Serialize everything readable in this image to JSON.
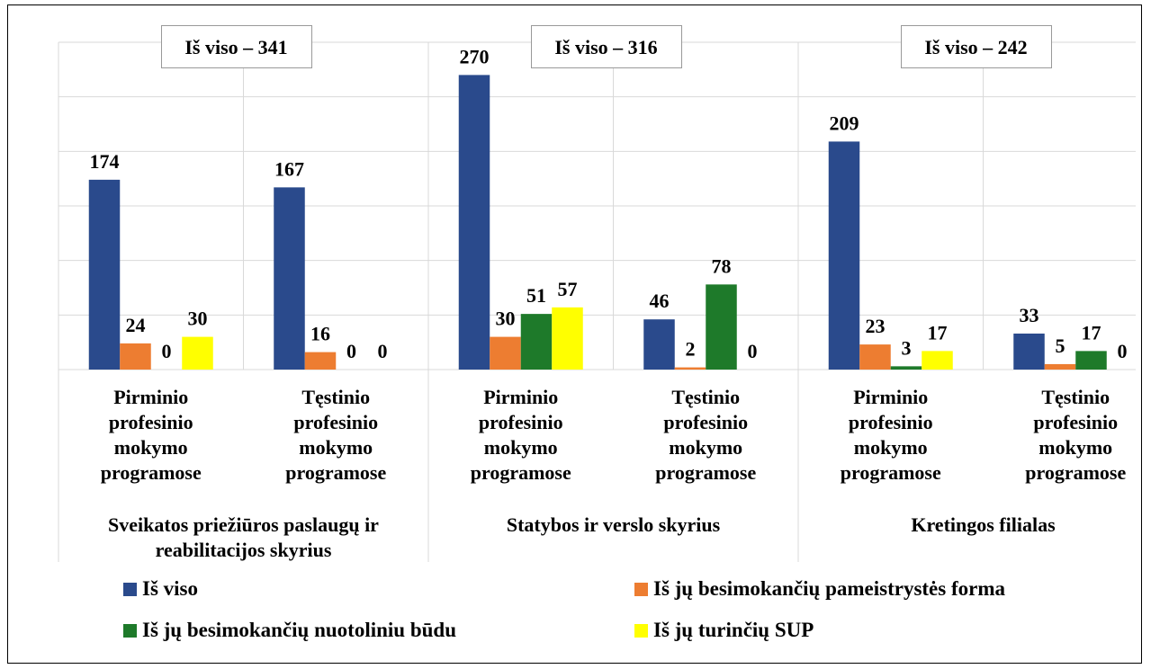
{
  "chart_data": {
    "type": "bar",
    "categories": [
      "Pirminio profesinio mokymo programose",
      "Tęstinio profesinio mokymo programose",
      "Pirminio profesinio mokymo programose",
      "Tęstinio profesinio mokymo programose",
      "Pirminio profesinio mokymo programose",
      "Tęstinio profesinio mokymo programose"
    ],
    "groups": [
      "Sveikatos priežiūros paslaugų ir reabilitacijos skyrius",
      "Statybos ir verslo skyrius",
      "Kretingos filialas"
    ],
    "annotations": [
      "Iš viso – 341",
      "Iš viso – 316",
      "Iš viso – 242"
    ],
    "series": [
      {
        "name": "Iš viso",
        "color": "#2a4a8c",
        "values": [
          174,
          167,
          270,
          46,
          209,
          33
        ]
      },
      {
        "name": "Iš jų besimokančių pameistrystės forma",
        "color": "#ed7d31",
        "values": [
          24,
          16,
          30,
          2,
          23,
          5
        ]
      },
      {
        "name": "Iš jų besimokančių nuotoliniu būdu",
        "color": "#1e7a2a",
        "values": [
          0,
          0,
          51,
          78,
          3,
          17
        ]
      },
      {
        "name": "Iš jų turinčių SUP",
        "color": "#ffff00",
        "values": [
          30,
          0,
          57,
          0,
          17,
          0
        ]
      }
    ],
    "ylim": [
      0,
      300
    ],
    "yticks": [
      0,
      50,
      100,
      150,
      200,
      250,
      300
    ],
    "grid": true,
    "legend": "bottom"
  }
}
